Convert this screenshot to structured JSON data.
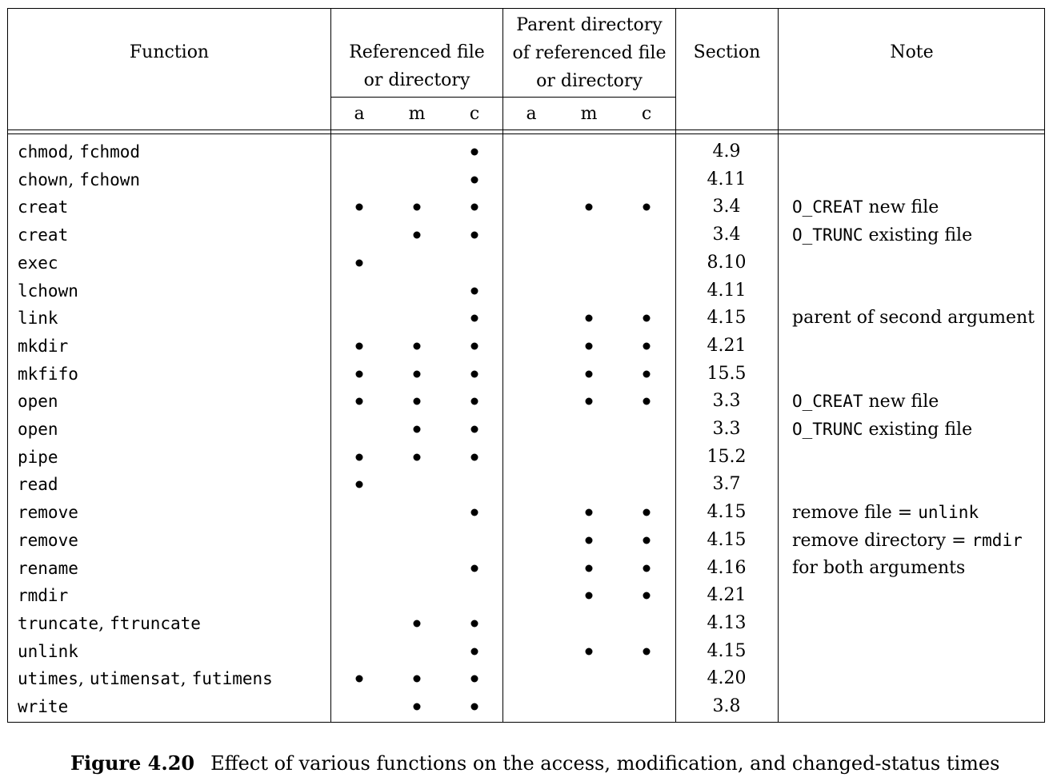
{
  "header": {
    "function": "Function",
    "referenced": [
      "Referenced file",
      "or directory"
    ],
    "parent": [
      "Parent directory",
      "of referenced file",
      "or directory"
    ],
    "section": "Section",
    "note": "Note",
    "sub": [
      "a",
      "m",
      "c",
      "a",
      "m",
      "c"
    ]
  },
  "rows": [
    {
      "fn": [
        {
          "t": "chmod",
          "m": true
        },
        {
          "t": ", ",
          "m": false
        },
        {
          "t": "fchmod",
          "m": true
        }
      ],
      "marks": [
        0,
        0,
        1,
        0,
        0,
        0
      ],
      "section": "4.9",
      "note": []
    },
    {
      "fn": [
        {
          "t": "chown",
          "m": true
        },
        {
          "t": ", ",
          "m": false
        },
        {
          "t": "fchown",
          "m": true
        }
      ],
      "marks": [
        0,
        0,
        1,
        0,
        0,
        0
      ],
      "section": "4.11",
      "note": []
    },
    {
      "fn": [
        {
          "t": "creat",
          "m": true
        }
      ],
      "marks": [
        1,
        1,
        1,
        0,
        1,
        1
      ],
      "section": "3.4",
      "note": [
        {
          "t": "O_CREAT",
          "m": true
        },
        {
          "t": " new file",
          "m": false
        }
      ]
    },
    {
      "fn": [
        {
          "t": "creat",
          "m": true
        }
      ],
      "marks": [
        0,
        1,
        1,
        0,
        0,
        0
      ],
      "section": "3.4",
      "note": [
        {
          "t": "O_TRUNC",
          "m": true
        },
        {
          "t": " existing file",
          "m": false
        }
      ]
    },
    {
      "fn": [
        {
          "t": "exec",
          "m": true
        }
      ],
      "marks": [
        1,
        0,
        0,
        0,
        0,
        0
      ],
      "section": "8.10",
      "note": []
    },
    {
      "fn": [
        {
          "t": "lchown",
          "m": true
        }
      ],
      "marks": [
        0,
        0,
        1,
        0,
        0,
        0
      ],
      "section": "4.11",
      "note": []
    },
    {
      "fn": [
        {
          "t": "link",
          "m": true
        }
      ],
      "marks": [
        0,
        0,
        1,
        0,
        1,
        1
      ],
      "section": "4.15",
      "note": [
        {
          "t": "parent of second argument",
          "m": false
        }
      ]
    },
    {
      "fn": [
        {
          "t": "mkdir",
          "m": true
        }
      ],
      "marks": [
        1,
        1,
        1,
        0,
        1,
        1
      ],
      "section": "4.21",
      "note": []
    },
    {
      "fn": [
        {
          "t": "mkfifo",
          "m": true
        }
      ],
      "marks": [
        1,
        1,
        1,
        0,
        1,
        1
      ],
      "section": "15.5",
      "note": []
    },
    {
      "fn": [
        {
          "t": "open",
          "m": true
        }
      ],
      "marks": [
        1,
        1,
        1,
        0,
        1,
        1
      ],
      "section": "3.3",
      "note": [
        {
          "t": "O_CREAT",
          "m": true
        },
        {
          "t": " new file",
          "m": false
        }
      ]
    },
    {
      "fn": [
        {
          "t": "open",
          "m": true
        }
      ],
      "marks": [
        0,
        1,
        1,
        0,
        0,
        0
      ],
      "section": "3.3",
      "note": [
        {
          "t": "O_TRUNC",
          "m": true
        },
        {
          "t": " existing file",
          "m": false
        }
      ]
    },
    {
      "fn": [
        {
          "t": "pipe",
          "m": true
        }
      ],
      "marks": [
        1,
        1,
        1,
        0,
        0,
        0
      ],
      "section": "15.2",
      "note": []
    },
    {
      "fn": [
        {
          "t": "read",
          "m": true
        }
      ],
      "marks": [
        1,
        0,
        0,
        0,
        0,
        0
      ],
      "section": "3.7",
      "note": []
    },
    {
      "fn": [
        {
          "t": "remove",
          "m": true
        }
      ],
      "marks": [
        0,
        0,
        1,
        0,
        1,
        1
      ],
      "section": "4.15",
      "note": [
        {
          "t": "remove file = ",
          "m": false
        },
        {
          "t": "unlink",
          "m": true
        }
      ]
    },
    {
      "fn": [
        {
          "t": "remove",
          "m": true
        }
      ],
      "marks": [
        0,
        0,
        0,
        0,
        1,
        1
      ],
      "section": "4.15",
      "note": [
        {
          "t": "remove directory = ",
          "m": false
        },
        {
          "t": "rmdir",
          "m": true
        }
      ]
    },
    {
      "fn": [
        {
          "t": "rename",
          "m": true
        }
      ],
      "marks": [
        0,
        0,
        1,
        0,
        1,
        1
      ],
      "section": "4.16",
      "note": [
        {
          "t": "for both arguments",
          "m": false
        }
      ]
    },
    {
      "fn": [
        {
          "t": "rmdir",
          "m": true
        }
      ],
      "marks": [
        0,
        0,
        0,
        0,
        1,
        1
      ],
      "section": "4.21",
      "note": []
    },
    {
      "fn": [
        {
          "t": "truncate",
          "m": true
        },
        {
          "t": ", ",
          "m": false
        },
        {
          "t": "ftruncate",
          "m": true
        }
      ],
      "marks": [
        0,
        1,
        1,
        0,
        0,
        0
      ],
      "section": "4.13",
      "note": []
    },
    {
      "fn": [
        {
          "t": "unlink",
          "m": true
        }
      ],
      "marks": [
        0,
        0,
        1,
        0,
        1,
        1
      ],
      "section": "4.15",
      "note": []
    },
    {
      "fn": [
        {
          "t": "utimes",
          "m": true
        },
        {
          "t": ", ",
          "m": false
        },
        {
          "t": "utimensat",
          "m": true
        },
        {
          "t": ", ",
          "m": false
        },
        {
          "t": "futimens",
          "m": true
        }
      ],
      "marks": [
        1,
        1,
        1,
        0,
        0,
        0
      ],
      "section": "4.20",
      "note": []
    },
    {
      "fn": [
        {
          "t": "write",
          "m": true
        }
      ],
      "marks": [
        0,
        1,
        1,
        0,
        0,
        0
      ],
      "section": "3.8",
      "note": []
    }
  ],
  "caption": {
    "label": "Figure 4.20",
    "text": "Effect of various functions on the access, modification, and changed-status times"
  }
}
